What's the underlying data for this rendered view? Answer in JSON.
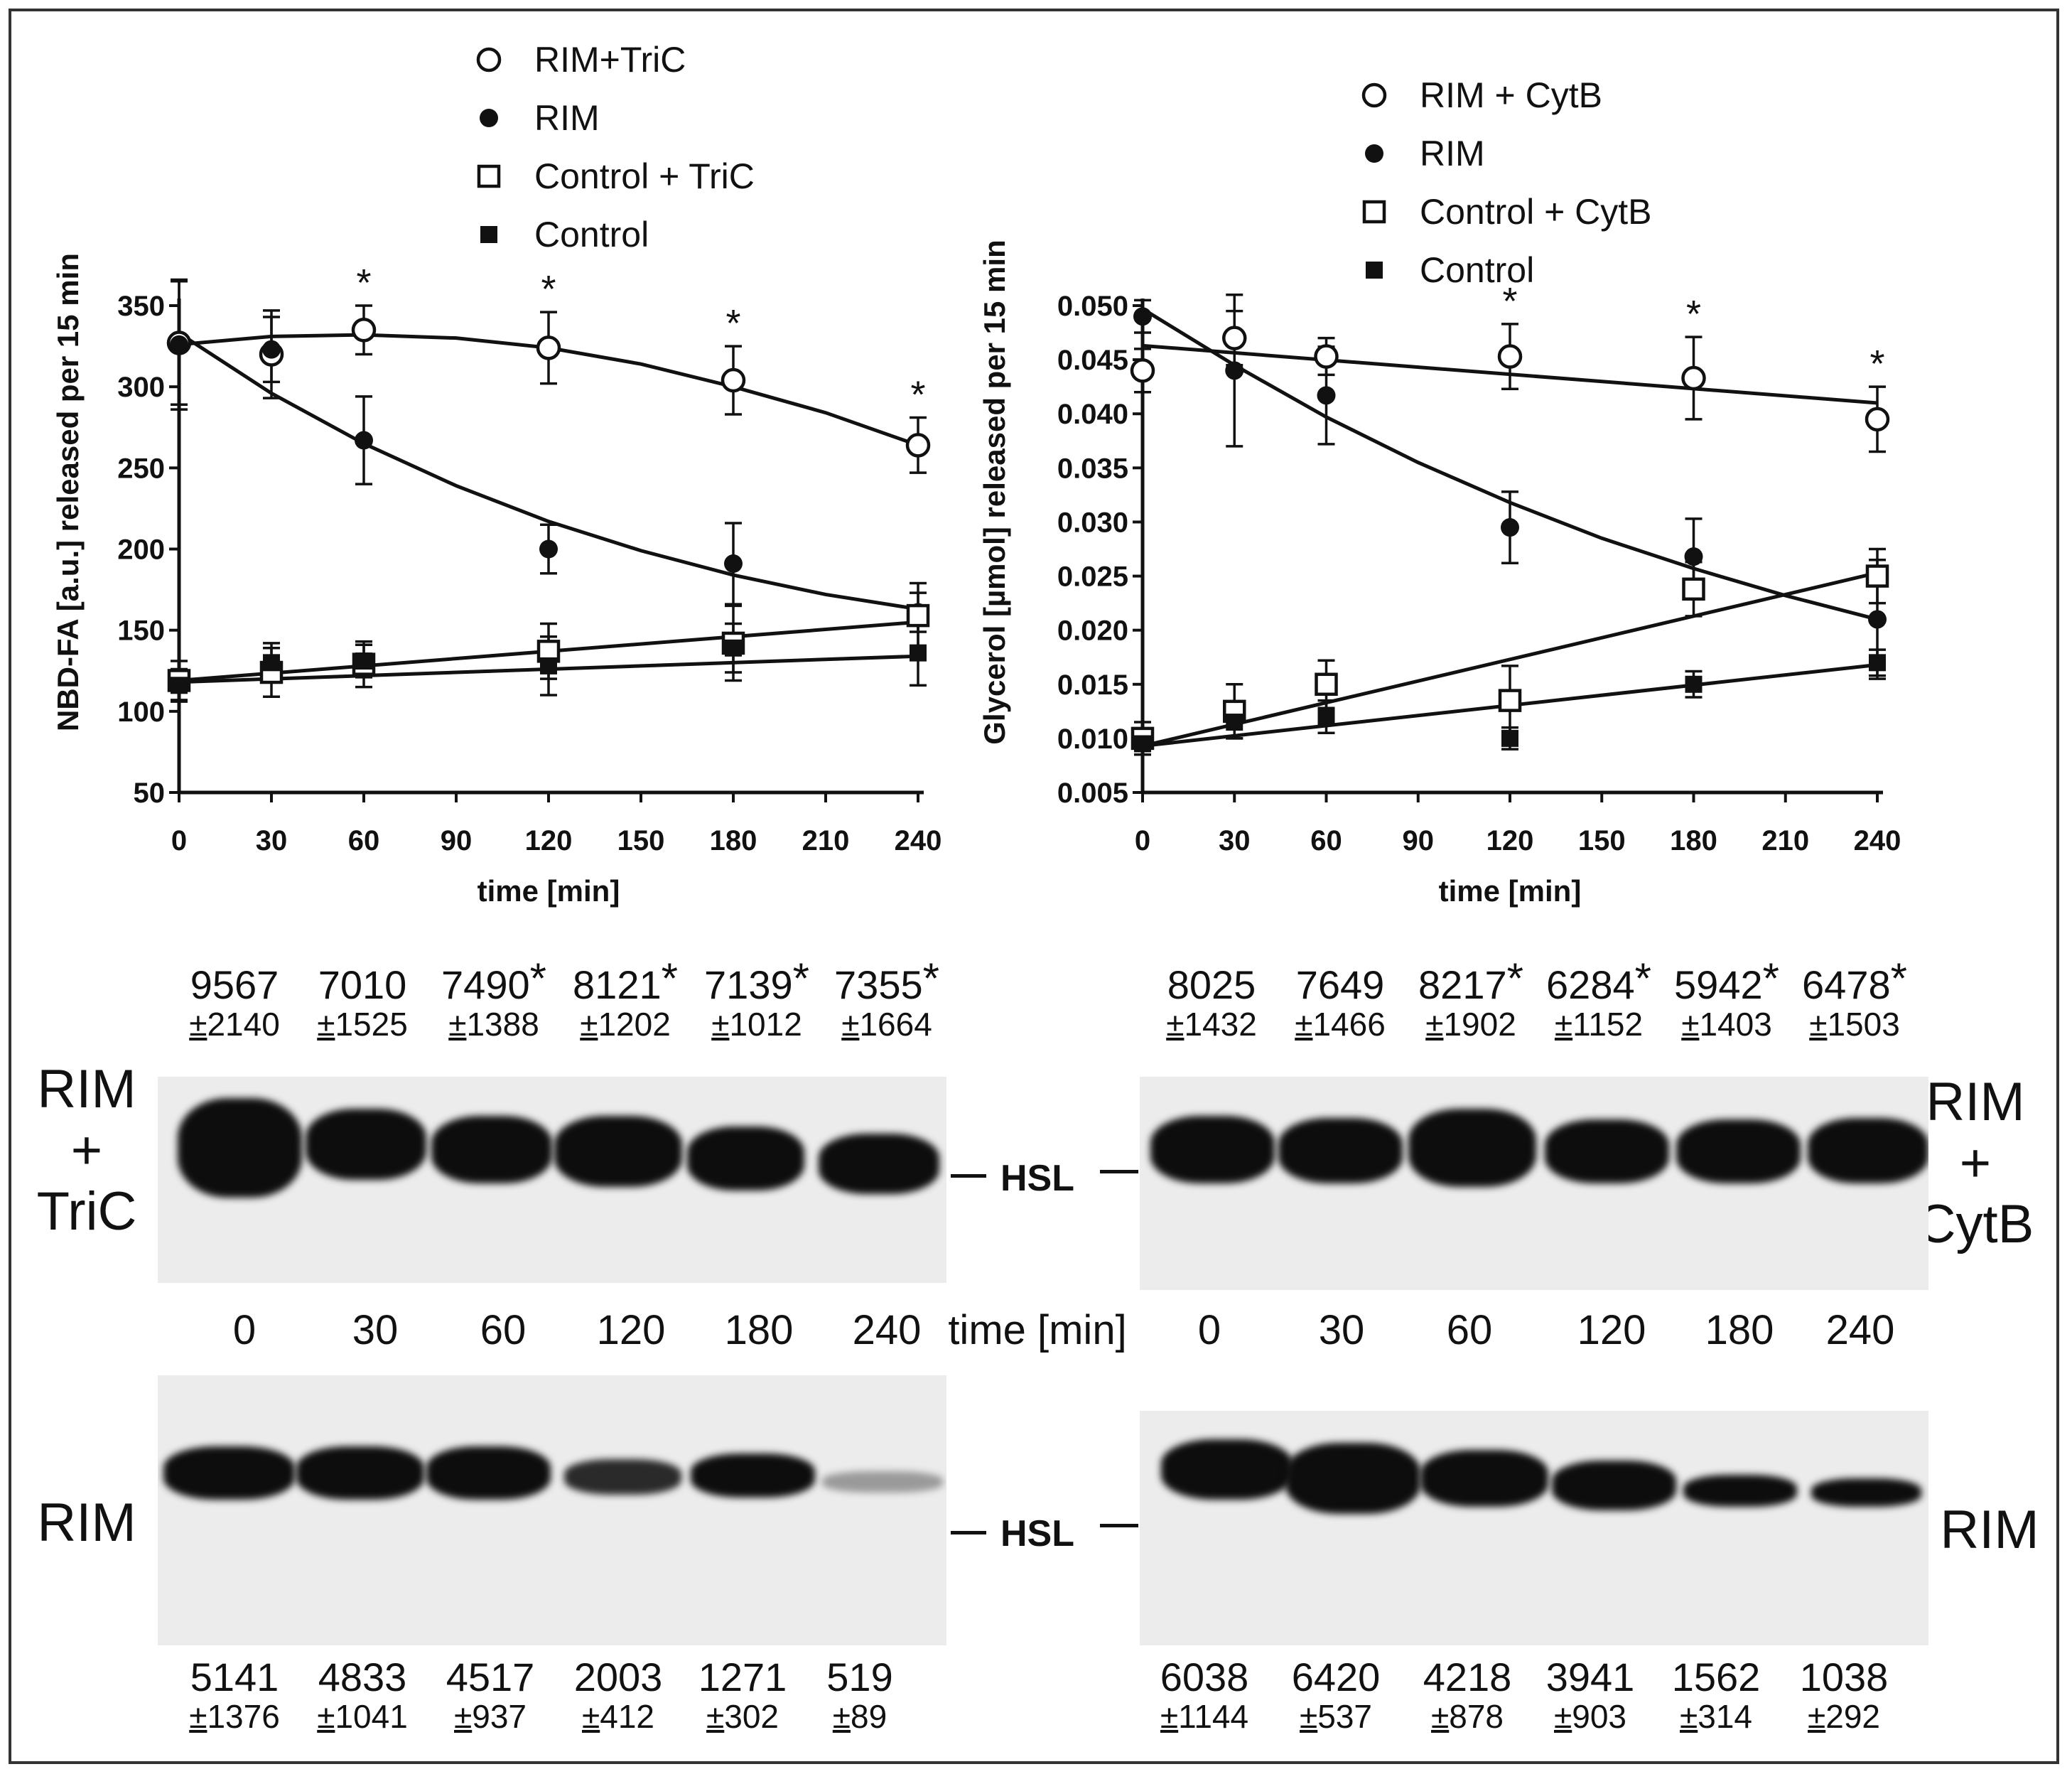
{
  "chart_data": [
    {
      "type": "scatter",
      "panel": "left",
      "xlabel": "time [min]",
      "ylabel": "NBD-FA [a.u.] released per 15 min",
      "xlim": [
        0,
        240
      ],
      "ylim": [
        50,
        350
      ],
      "xticks": [
        0,
        30,
        60,
        90,
        120,
        150,
        180,
        210,
        240
      ],
      "yticks": [
        50,
        100,
        150,
        200,
        250,
        300,
        350
      ],
      "significance_marker": "*",
      "significant_x": [
        60,
        120,
        180,
        240
      ],
      "series": [
        {
          "name": "RIM+TriC",
          "marker": "open-circle",
          "x": [
            0,
            30,
            60,
            120,
            180,
            240
          ],
          "y": [
            327,
            320,
            335,
            324,
            304,
            264
          ],
          "err": [
            38,
            27,
            15,
            22,
            21,
            17
          ]
        },
        {
          "name": "RIM",
          "marker": "filled-circle",
          "x": [
            0,
            30,
            60,
            120,
            180,
            240
          ],
          "y": [
            326,
            323,
            267,
            200,
            191,
            161
          ],
          "err": [
            40,
            20,
            27,
            15,
            25,
            12
          ]
        },
        {
          "name": "Control + TriC",
          "marker": "open-square",
          "x": [
            0,
            30,
            60,
            120,
            180,
            240
          ],
          "y": [
            119,
            124,
            129,
            137,
            142,
            159
          ],
          "err": [
            12,
            15,
            14,
            17,
            23,
            20
          ]
        },
        {
          "name": "Control",
          "marker": "filled-square",
          "x": [
            0,
            30,
            60,
            120,
            180,
            240
          ],
          "y": [
            116,
            130,
            131,
            128,
            139,
            136
          ],
          "err": [
            10,
            12,
            10,
            18,
            15,
            20
          ]
        }
      ],
      "fits": [
        {
          "name": "RIM+TriC",
          "x": [
            0,
            30,
            60,
            90,
            120,
            150,
            180,
            210,
            240
          ],
          "y": [
            326,
            331,
            332,
            330,
            324,
            314,
            300,
            284,
            264
          ]
        },
        {
          "name": "RIM",
          "x": [
            0,
            30,
            60,
            90,
            120,
            150,
            180,
            210,
            240
          ],
          "y": [
            333,
            296,
            265,
            239,
            217,
            199,
            184,
            172,
            163
          ]
        },
        {
          "name": "Control + TriC",
          "x": [
            0,
            240
          ],
          "y": [
            119,
            155
          ]
        },
        {
          "name": "Control",
          "x": [
            0,
            240
          ],
          "y": [
            118,
            134
          ]
        }
      ]
    },
    {
      "type": "scatter",
      "panel": "right",
      "xlabel": "time [min]",
      "ylabel": "Glycerol [µmol] released per 15 min",
      "xlim": [
        0,
        240
      ],
      "ylim": [
        0.005,
        0.05
      ],
      "xticks": [
        0,
        30,
        60,
        90,
        120,
        150,
        180,
        210,
        240
      ],
      "yticks": [
        "0.005",
        "0.010",
        "0.015",
        "0.020",
        "0.025",
        "0.030",
        "0.035",
        "0.040",
        "0.045",
        "0.050"
      ],
      "significance_marker": "*",
      "significant_x": [
        120,
        180,
        240
      ],
      "series": [
        {
          "name": "RIM + CytB",
          "marker": "open-circle",
          "x": [
            0,
            30,
            60,
            120,
            180,
            240
          ],
          "y": [
            0.044,
            0.047,
            0.0453,
            0.0453,
            0.0433,
            0.0395
          ],
          "err": [
            0.002,
            0.0025,
            0.0017,
            0.003,
            0.0038,
            0.003
          ]
        },
        {
          "name": "RIM",
          "marker": "filled-circle",
          "x": [
            0,
            30,
            60,
            120,
            180,
            240
          ],
          "y": [
            0.049,
            0.044,
            0.0417,
            0.0295,
            0.0268,
            0.021
          ],
          "err": [
            0.0015,
            0.007,
            0.0045,
            0.0033,
            0.0035,
            0.0055
          ]
        },
        {
          "name": "Control + CytB",
          "marker": "open-square",
          "x": [
            0,
            30,
            60,
            120,
            180,
            240
          ],
          "y": [
            0.01,
            0.0125,
            0.015,
            0.0135,
            0.0238,
            0.025
          ],
          "err": [
            0.0015,
            0.0025,
            0.0022,
            0.0032,
            0.0025,
            0.0025
          ]
        },
        {
          "name": "Control",
          "marker": "filled-square",
          "x": [
            0,
            30,
            60,
            120,
            180,
            240
          ],
          "y": [
            0.0095,
            0.0115,
            0.012,
            0.01,
            0.015,
            0.017
          ],
          "err": [
            0.001,
            0.0015,
            0.0015,
            0.001,
            0.0012,
            0.0012
          ]
        }
      ],
      "fits": [
        {
          "name": "RIM + CytB",
          "x": [
            0,
            240
          ],
          "y": [
            0.0463,
            0.041
          ]
        },
        {
          "name": "RIM",
          "x": [
            0,
            30,
            60,
            90,
            120,
            150,
            180,
            210,
            240
          ],
          "y": [
            0.0497,
            0.0445,
            0.0397,
            0.0355,
            0.0318,
            0.0285,
            0.0257,
            0.0232,
            0.021
          ]
        },
        {
          "name": "Control + CytB",
          "x": [
            0,
            240
          ],
          "y": [
            0.0093,
            0.0253
          ]
        },
        {
          "name": "Control",
          "x": [
            0,
            240
          ],
          "y": [
            0.0093,
            0.0168
          ]
        }
      ]
    }
  ],
  "blots": {
    "band_label": "HSL",
    "time_label": "time [min]",
    "time_points": [
      "0",
      "30",
      "60",
      "120",
      "180",
      "240"
    ],
    "left": {
      "top_label_lines": [
        "RIM",
        "+",
        "TriC"
      ],
      "bottom_label": "RIM",
      "top_values": [
        {
          "v": "9567",
          "e": "2140",
          "star": ""
        },
        {
          "v": "7010",
          "e": "1525",
          "star": ""
        },
        {
          "v": "7490",
          "e": "1388",
          "star": "*"
        },
        {
          "v": "8121",
          "e": "1202",
          "star": "*"
        },
        {
          "v": "7139",
          "e": "1012",
          "star": "*"
        },
        {
          "v": "7355",
          "e": "1664",
          "star": "*"
        }
      ],
      "bottom_values": [
        {
          "v": "5141",
          "e": "1376"
        },
        {
          "v": "4833",
          "e": "1041"
        },
        {
          "v": "4517",
          "e": "937"
        },
        {
          "v": "2003",
          "e": "412"
        },
        {
          "v": "1271",
          "e": "302"
        },
        {
          "v": "519",
          "e": "89"
        }
      ]
    },
    "right": {
      "top_label_lines": [
        "RIM",
        "+",
        "CytB"
      ],
      "bottom_label": "RIM",
      "top_values": [
        {
          "v": "8025",
          "e": "1432",
          "star": ""
        },
        {
          "v": "7649",
          "e": "1466",
          "star": ""
        },
        {
          "v": "8217",
          "e": "1902",
          "star": "*"
        },
        {
          "v": "6284",
          "e": "1152",
          "star": "*"
        },
        {
          "v": "5942",
          "e": "1403",
          "star": "*"
        },
        {
          "v": "6478",
          "e": "1503",
          "star": "*"
        }
      ],
      "bottom_values": [
        {
          "v": "6038",
          "e": "1144"
        },
        {
          "v": "6420",
          "e": "537"
        },
        {
          "v": "4218",
          "e": "878"
        },
        {
          "v": "3941",
          "e": "903"
        },
        {
          "v": "1562",
          "e": "314"
        },
        {
          "v": "1038",
          "e": "292"
        }
      ]
    }
  }
}
